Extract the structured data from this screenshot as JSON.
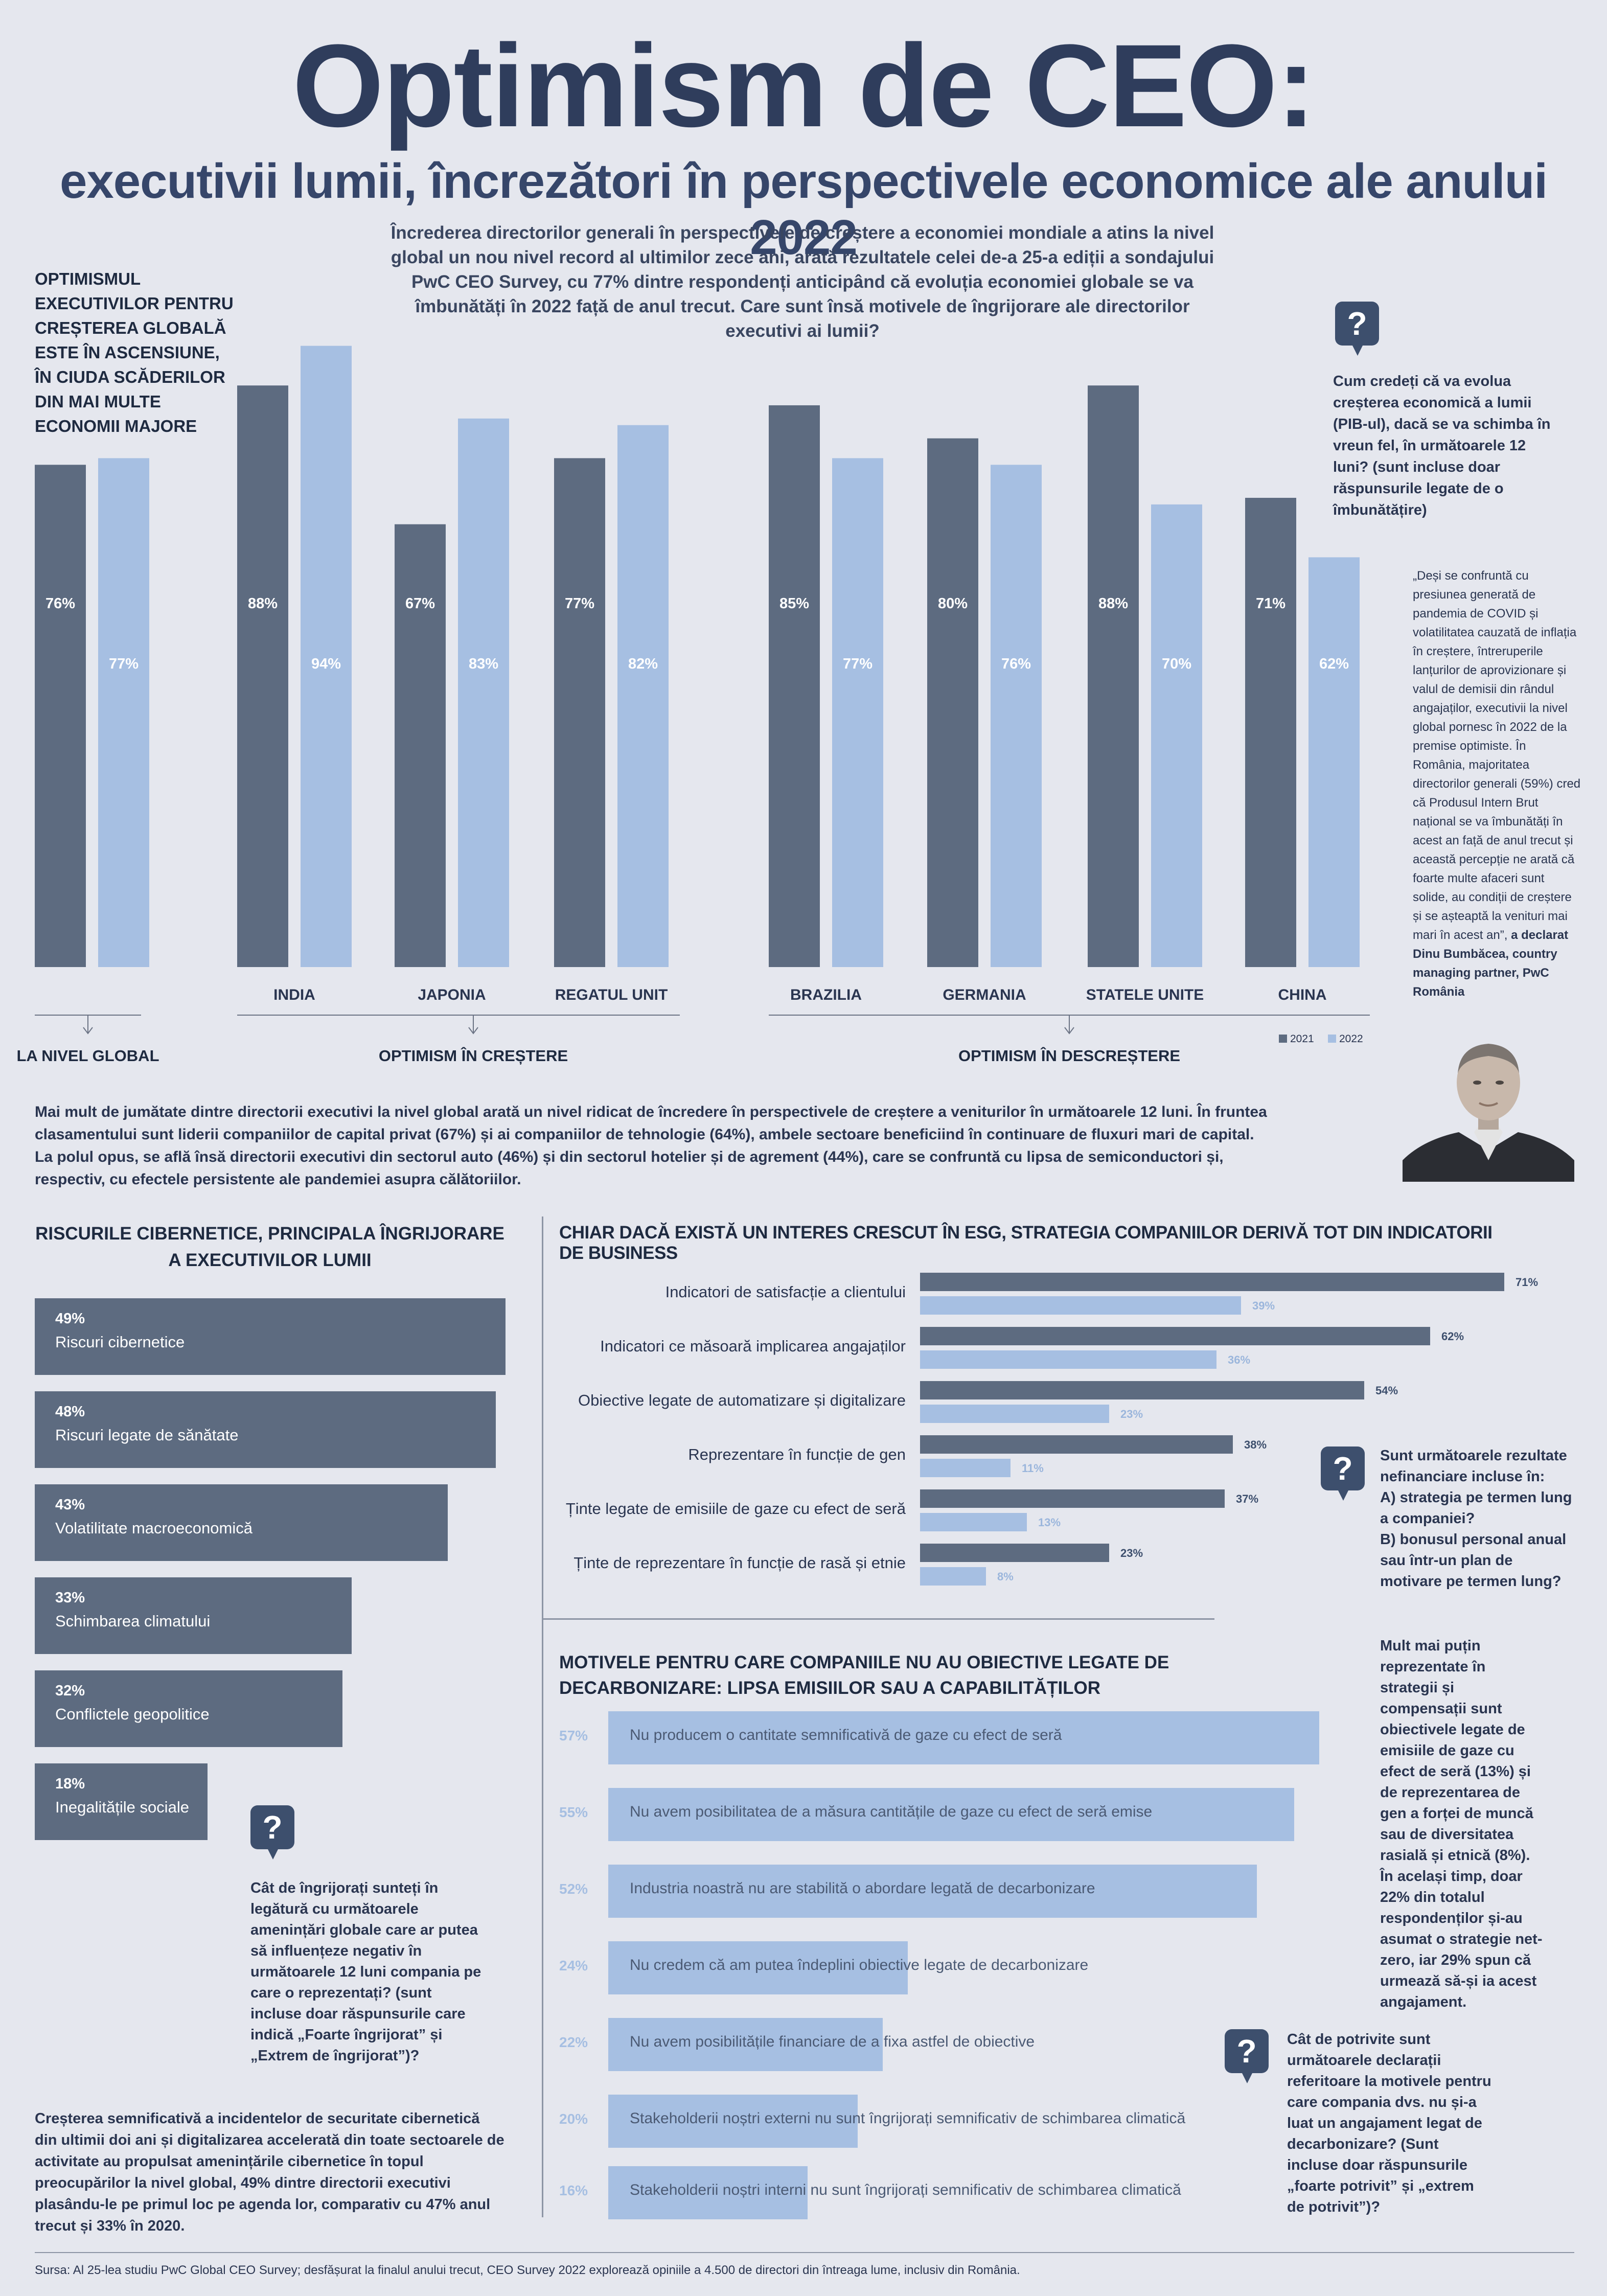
{
  "header": {
    "title": "Optimism de CEO:",
    "subtitle": "executivii lumii, încrezători în perspectivele economice ale anului 2022",
    "intro": "Încrederea directorilor generali în perspectivele de creștere a economiei mondiale a atins la nivel global un nou nivel record al ultimilor zece ani, arată rezultatele celei de-a 25-a ediții a sondajului PwC CEO Survey, cu 77% dintre respondenți anticipând că evoluția economiei globale se va îmbunătăți în 2022 față de anul trecut. Care sunt însă motivele de îngrijorare ale directorilor executivi ai lumii?"
  },
  "left_heading": "OPTIMISMUL EXECUTIVILOR PENTRU CREȘTEREA GLOBALĂ ESTE ÎN ASCENSIUNE, ÎN CIUDA SCĂDERILOR DIN MAI MULTE ECONOMII MAJORE",
  "question_growth": "Cum credeți că va evolua creșterea economică a lumii (PIB-ul), dacă se va schimba în vreun fel, în următoarele 12 luni? (sunt incluse doar răspunsurile legate de o îmbunătățire)",
  "quote": {
    "text": "„Deși se confruntă cu presiunea generată de pandemia de COVID și volatilitatea cauzată de inflația în creștere, întreruperile lanțurilor de aprovizionare și valul de demisii din rândul angajaților, executivii la nivel global pornesc în 2022 de la premise optimiste. În România, majoritatea directorilor generali (59%) cred că Produsul Intern Brut național se va îmbunătăți în acest an față de anul trecut și această percepție ne arată că foarte multe afaceri sunt solide, au condiții de creștere și se așteaptă la venituri mai mari în acest an”, ",
    "attribution": "a declarat Dinu Bumbăcea, country managing partner, PwC România"
  },
  "paragraph_revenue": "Mai mult de jumătate dintre directorii executivi la nivel global arată un nivel ridicat de încredere în perspectivele de creștere a veniturilor în următoarele 12 luni. În fruntea clasamentului sunt liderii companiilor de capital privat (67%) și ai companiilor de tehnologie (64%), ambele sectoare beneficiind în continuare de fluxuri mari de capital. La polul opus, se află însă directorii executivi din sectorul auto (46%) și din sectorul hotelier și de agrement (44%), care se confruntă cu lipsa de semiconductori și, respectiv, cu efectele persistente ale pandemiei asupra călătoriilor.",
  "risks": {
    "title": "RISCURILE CIBERNETICE, PRINCIPALA ÎNGRIJORARE A EXECUTIVILOR LUMII",
    "question": "Cât de îngrijorați sunteți în legătură cu următoarele amenințări globale care ar putea să influențeze negativ în următoarele 12 luni compania pe care o reprezentați? (sunt incluse doar răspunsurile care indică „Foarte îngrijorat” și „Extrem de îngrijorat”)?",
    "paragraph": "Creșterea semnificativă a incidentelor de securitate cibernetică din ultimii doi ani și digitalizarea accelerată din toate sectoarele de activitate au propulsat amenințările cibernetice în topul preocupărilor la nivel global, 49% dintre directorii executivi plasându-le pe primul loc pe agenda lor, comparativ cu 47% anul trecut și 33% în 2020."
  },
  "esg": {
    "title": "CHIAR DACĂ EXISTĂ UN INTERES CRESCUT ÎN ESG, STRATEGIA COMPANIILOR DERIVĂ TOT DIN INDICATORII DE BUSINESS",
    "question": "Sunt următoarele rezultate nefinanciare incluse în:\nA) strategia pe termen lung a companiei?\nB) bonusul personal anual sau într-un plan de motivare pe termen lung?",
    "paragraph": "Mult mai puțin reprezentate în strategii și compensații sunt obiectivele legate de emisiile de gaze cu efect de seră (13%) și de reprezentarea de gen a forței de muncă sau de diversitatea rasială și etnică (8%). În același timp, doar 22% din totalul respondenților și-au asumat o strategie net-zero, iar 29% spun că urmează să-și ia acest angajament."
  },
  "decarb": {
    "title": "MOTIVELE PENTRU CARE COMPANIILE NU AU OBIECTIVE LEGATE DE DECARBONIZARE: LIPSA EMISIILOR SAU A CAPABILITĂȚILOR",
    "question": "Cât de potrivite sunt următoarele declarații referitoare la motivele pentru care compania dvs. nu și-a luat un angajament legat de decarbonizare? (Sunt incluse doar răspunsurile „foarte potrivit” și „extrem de potrivit”)?"
  },
  "source": "Sursa: Al 25-lea studiu PwC Global CEO Survey; desfășurat la finalul anului trecut, CEO Survey 2022 explorează opiniile a 4.500 de directori din întreaga lume, inclusiv din România.",
  "colors": {
    "dark": "#5d6b80",
    "light": "#a6bfe2",
    "text": "#2c3852"
  },
  "icons": [
    "question-icon"
  ],
  "chart_data": [
    {
      "type": "bar",
      "title": "",
      "categories": [
        "",
        "INDIA",
        "JAPONIA",
        "REGATUL UNIT",
        "BRAZILIA",
        "GERMANIA",
        "STATELE UNITE",
        "CHINA"
      ],
      "series": [
        {
          "name": "2021",
          "values": [
            76,
            88,
            67,
            77,
            85,
            80,
            88,
            71
          ]
        },
        {
          "name": "2022",
          "values": [
            77,
            94,
            83,
            82,
            77,
            76,
            70,
            62
          ]
        }
      ],
      "groups": [
        {
          "label": "LA NIVEL GLOBAL",
          "categories": [
            ""
          ]
        },
        {
          "label": "OPTIMISM ÎN CREȘTERE",
          "categories": [
            "INDIA",
            "JAPONIA",
            "REGATUL UNIT"
          ]
        },
        {
          "label": "OPTIMISM ÎN DESCREȘTERE",
          "categories": [
            "BRAZILIA",
            "GERMANIA",
            "STATELE UNITE",
            "CHINA"
          ]
        }
      ],
      "legend": "bottom-right",
      "value_suffix": "%"
    },
    {
      "type": "bar",
      "orientation": "horizontal",
      "title": "RISCURILE CIBERNETICE, PRINCIPALA ÎNGRIJORARE A EXECUTIVILOR LUMII",
      "categories": [
        "Riscuri cibernetice",
        "Riscuri legate de sănătate",
        "Volatilitate macroeconomică",
        "Schimbarea climatului",
        "Conflictele geopolitice",
        "Inegalitățile sociale"
      ],
      "values": [
        49,
        48,
        43,
        33,
        32,
        18
      ],
      "value_suffix": "%"
    },
    {
      "type": "bar",
      "orientation": "horizontal",
      "title": "CHIAR DACĂ EXISTĂ UN INTERES CRESCUT ÎN ESG, STRATEGIA COMPANIILOR DERIVĂ TOT DIN INDICATORII DE BUSINESS",
      "categories": [
        "Indicatori de satisfacție a clientului",
        "Indicatori ce măsoară implicarea angajaților",
        "Obiective legate de automatizare și digitalizare",
        "Reprezentare în funcție de gen",
        "Ținte legate de emisiile de gaze cu efect de seră",
        "Ținte de reprezentare în funcție de rasă și etnie"
      ],
      "series": [
        {
          "name": "",
          "values": [
            71,
            62,
            54,
            38,
            37,
            23
          ]
        },
        {
          "name": "",
          "values": [
            39,
            36,
            23,
            11,
            13,
            8
          ]
        }
      ],
      "value_suffix": "%"
    },
    {
      "type": "bar",
      "orientation": "horizontal",
      "title": "MOTIVELE PENTRU CARE COMPANIILE NU AU OBIECTIVE LEGATE DE DECARBONIZARE: LIPSA EMISIILOR SAU A CAPABILITĂȚILOR",
      "categories": [
        "Nu producem o cantitate semnificativă de gaze cu efect de seră",
        "Nu avem posibilitatea de a măsura cantitățile de gaze cu efect de seră emise",
        "Industria noastră nu are stabilită o abordare legată de decarbonizare",
        "Nu credem că am putea îndeplini obiective legate de decarbonizare",
        "Nu avem posibilitățile financiare de a fixa astfel de obiective",
        "Stakeholderii noștri externi nu sunt îngrijorați semnificativ de schimbarea climatică",
        "Stakeholderii noștri interni nu sunt îngrijorați semnificativ de schimbarea climatică"
      ],
      "values": [
        57,
        55,
        52,
        24,
        22,
        20,
        16
      ],
      "value_suffix": "%"
    }
  ]
}
